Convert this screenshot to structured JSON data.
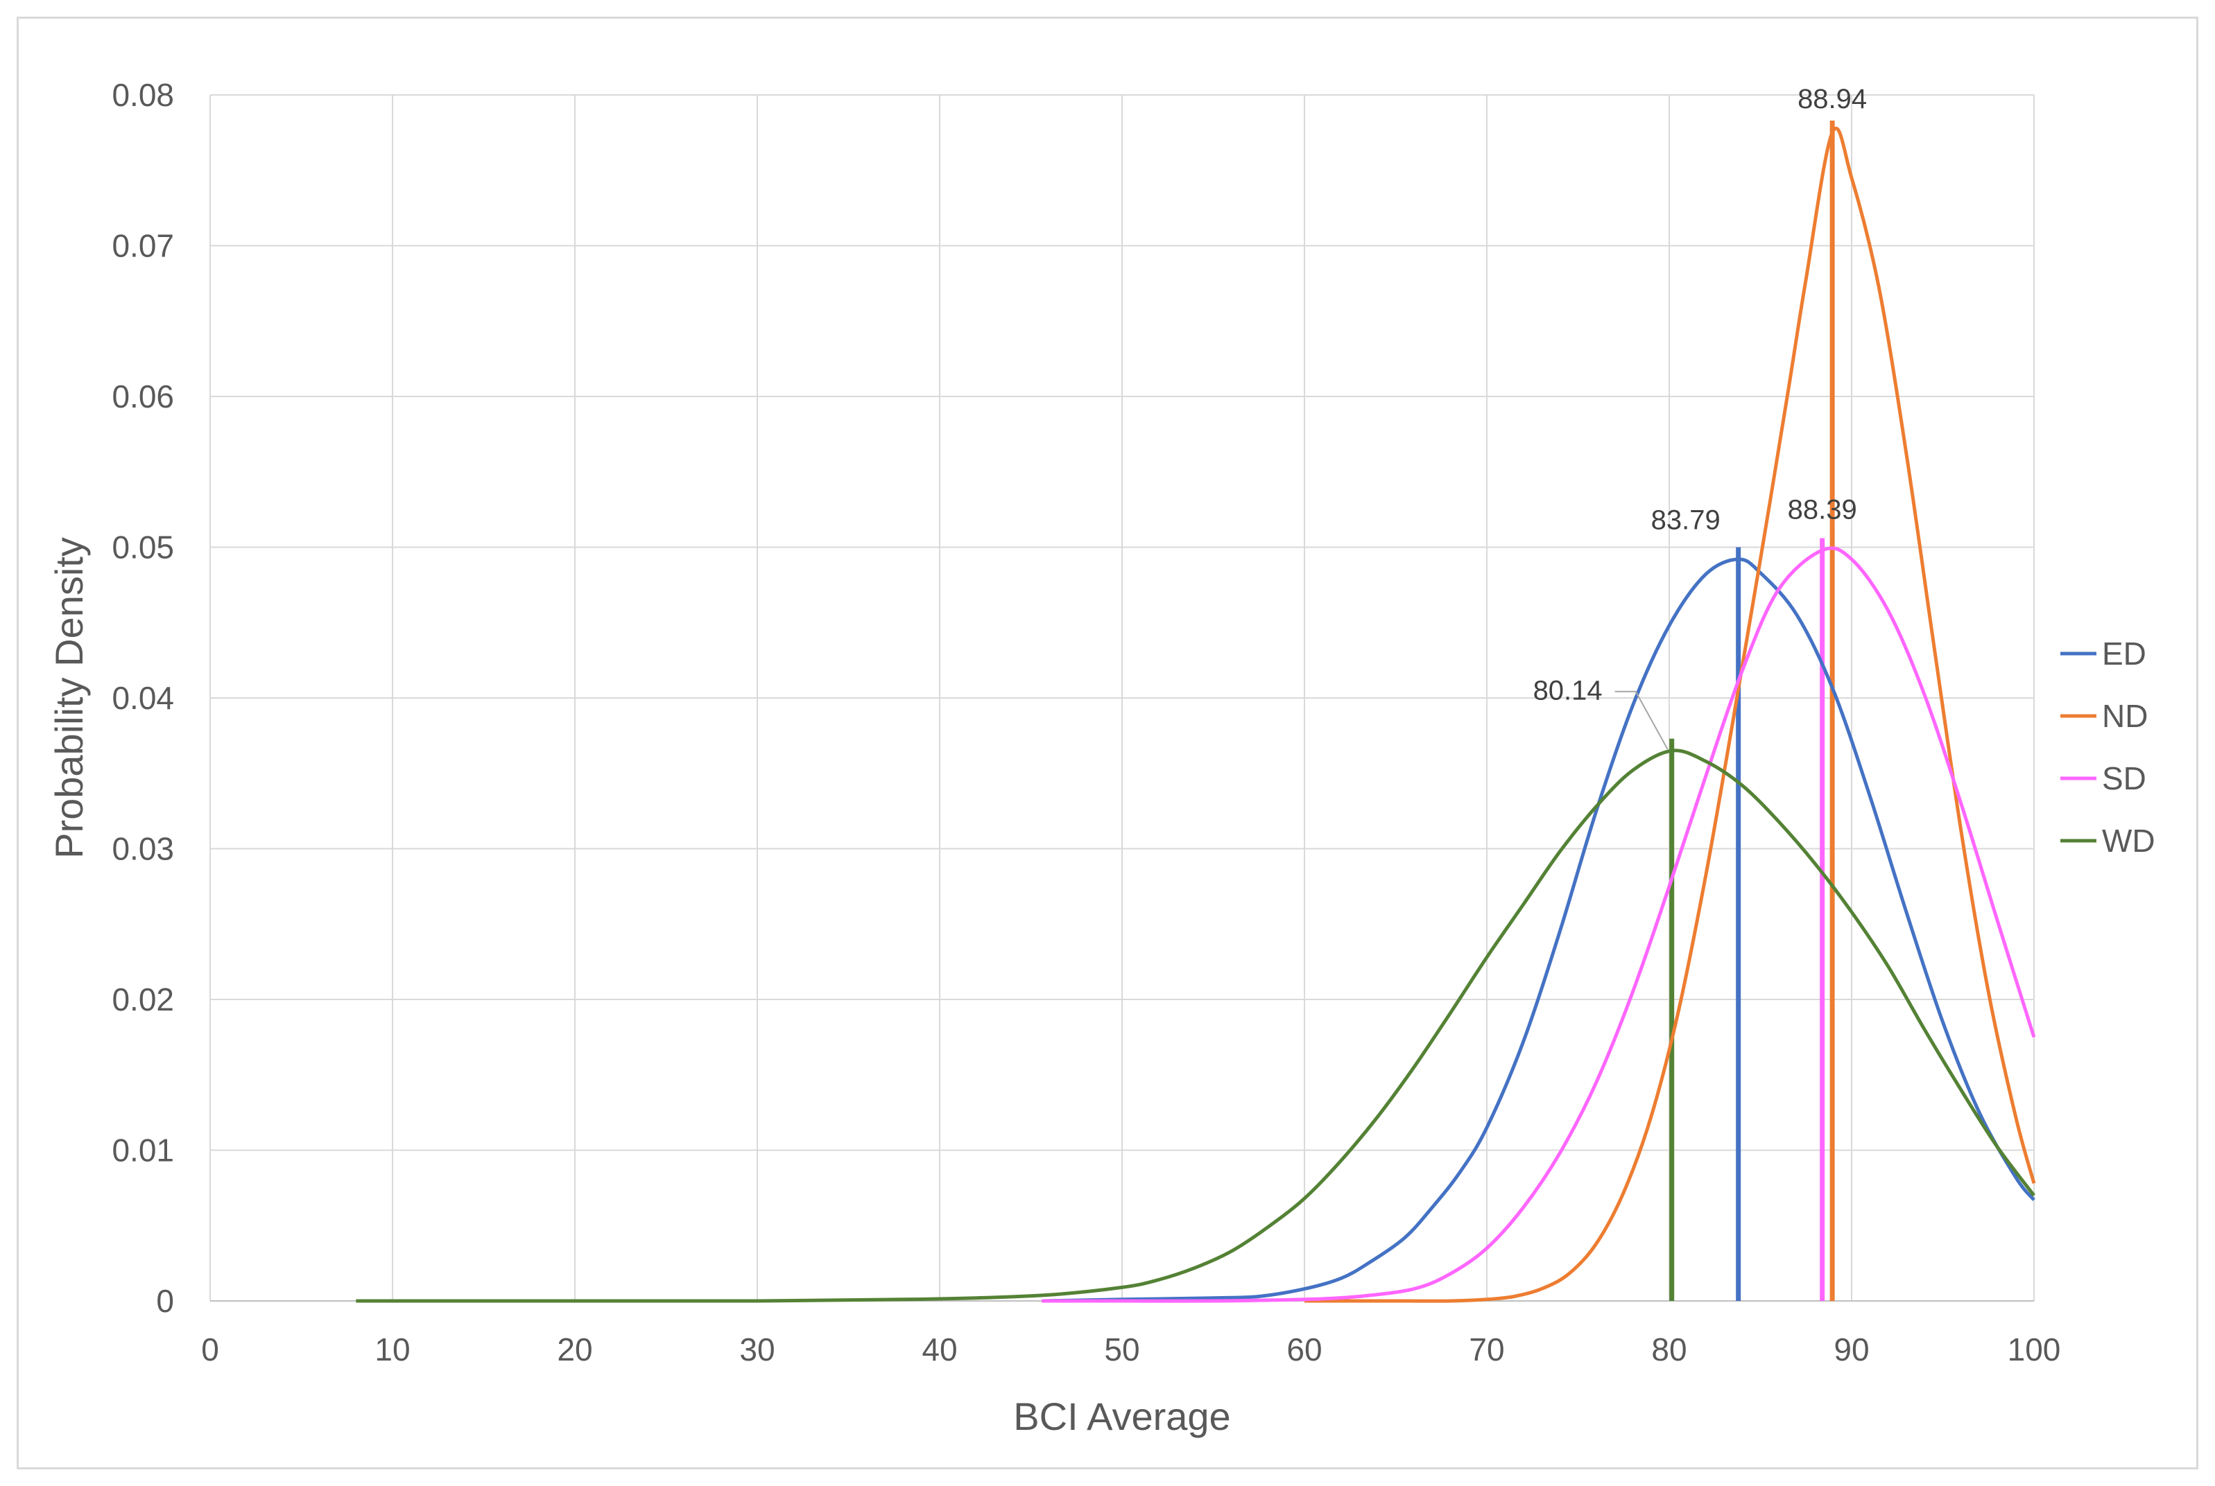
{
  "chart_data": {
    "type": "line",
    "title": "",
    "xlabel": "BCI Average",
    "ylabel": "Probability Density",
    "xlim": [
      0,
      100
    ],
    "ylim": [
      0,
      0.08
    ],
    "x_ticks": [
      0,
      10,
      20,
      30,
      40,
      50,
      60,
      70,
      80,
      90,
      100
    ],
    "x_tick_labels": [
      "0",
      "10",
      "20",
      "30",
      "40",
      "50",
      "60",
      "70",
      "80",
      "90",
      "100"
    ],
    "y_ticks": [
      0,
      0.01,
      0.02,
      0.03,
      0.04,
      0.05,
      0.06,
      0.07,
      0.08
    ],
    "y_tick_labels": [
      "0",
      "0.01",
      "0.02",
      "0.03",
      "0.04",
      "0.05",
      "0.06",
      "0.07",
      "0.08"
    ],
    "grid": true,
    "legend_position": "right",
    "series": [
      {
        "name": "ED",
        "color": "#4472c4",
        "x": [
          45.6,
          50,
          55,
          57.5,
          60,
          62,
          63.5,
          65.5,
          67,
          68.5,
          70,
          72,
          74,
          76,
          78,
          80,
          82,
          83.79,
          85,
          87,
          89,
          91,
          93,
          95,
          97,
          99,
          100
        ],
        "y": [
          0.0,
          0.0001,
          0.0002,
          0.0003,
          0.0008,
          0.0015,
          0.0025,
          0.0042,
          0.0062,
          0.0085,
          0.0115,
          0.0172,
          0.0245,
          0.0325,
          0.0395,
          0.0448,
          0.0482,
          0.0492,
          0.0483,
          0.0455,
          0.0405,
          0.0335,
          0.0258,
          0.0185,
          0.0125,
          0.0082,
          0.0067
        ],
        "peak": {
          "x": 83.79,
          "label": "83.79"
        }
      },
      {
        "name": "ND",
        "color": "#ed7d31",
        "x": [
          60,
          65,
          68,
          70,
          71.5,
          73,
          74.5,
          76,
          77.5,
          79,
          80.5,
          82,
          83.5,
          85,
          86.5,
          87.5,
          88.94,
          90,
          91.5,
          93,
          94.5,
          96,
          97.5,
          99,
          100
        ],
        "y": [
          0.0,
          0.0,
          0.0,
          0.0001,
          0.0003,
          0.0008,
          0.0018,
          0.0038,
          0.0072,
          0.0122,
          0.0192,
          0.0282,
          0.0385,
          0.0492,
          0.0602,
          0.0678,
          0.0775,
          0.0745,
          0.0672,
          0.0562,
          0.0436,
          0.0312,
          0.0205,
          0.0122,
          0.0078
        ],
        "peak": {
          "x": 88.94,
          "label": "88.94"
        }
      },
      {
        "name": "SD",
        "color": "#ff66ff",
        "x": [
          45.6,
          50,
          55,
          60,
          63,
          66,
          68,
          70,
          72,
          74,
          76,
          78,
          80,
          82,
          84,
          86,
          88.39,
          90,
          92,
          94,
          96,
          98,
          100
        ],
        "y": [
          0.0,
          0.0,
          0.0,
          0.0001,
          0.0003,
          0.0008,
          0.0018,
          0.0035,
          0.0062,
          0.0098,
          0.0145,
          0.0205,
          0.0275,
          0.0348,
          0.0418,
          0.0472,
          0.0498,
          0.0492,
          0.0458,
          0.0402,
          0.033,
          0.0252,
          0.0175
        ],
        "peak": {
          "x": 88.39,
          "label": "88.39"
        }
      },
      {
        "name": "WD",
        "color": "#548235",
        "x": [
          8,
          20,
          30,
          38,
          42,
          46,
          50,
          52,
          54,
          56,
          58,
          60,
          62,
          64,
          66,
          68,
          70,
          72,
          74,
          76,
          78,
          80.14,
          82,
          84,
          86,
          88,
          90,
          92,
          94,
          96,
          98,
          100
        ],
        "y": [
          0.0,
          0.0,
          0.0,
          0.0001,
          0.0002,
          0.0004,
          0.0009,
          0.0014,
          0.0022,
          0.0033,
          0.0049,
          0.0068,
          0.0093,
          0.0122,
          0.0155,
          0.0191,
          0.0228,
          0.0263,
          0.0298,
          0.0328,
          0.0352,
          0.0365,
          0.0358,
          0.0342,
          0.0318,
          0.029,
          0.0258,
          0.0222,
          0.018,
          0.014,
          0.0102,
          0.007
        ],
        "peak": {
          "x": 80.14,
          "label": "80.14"
        }
      }
    ]
  }
}
